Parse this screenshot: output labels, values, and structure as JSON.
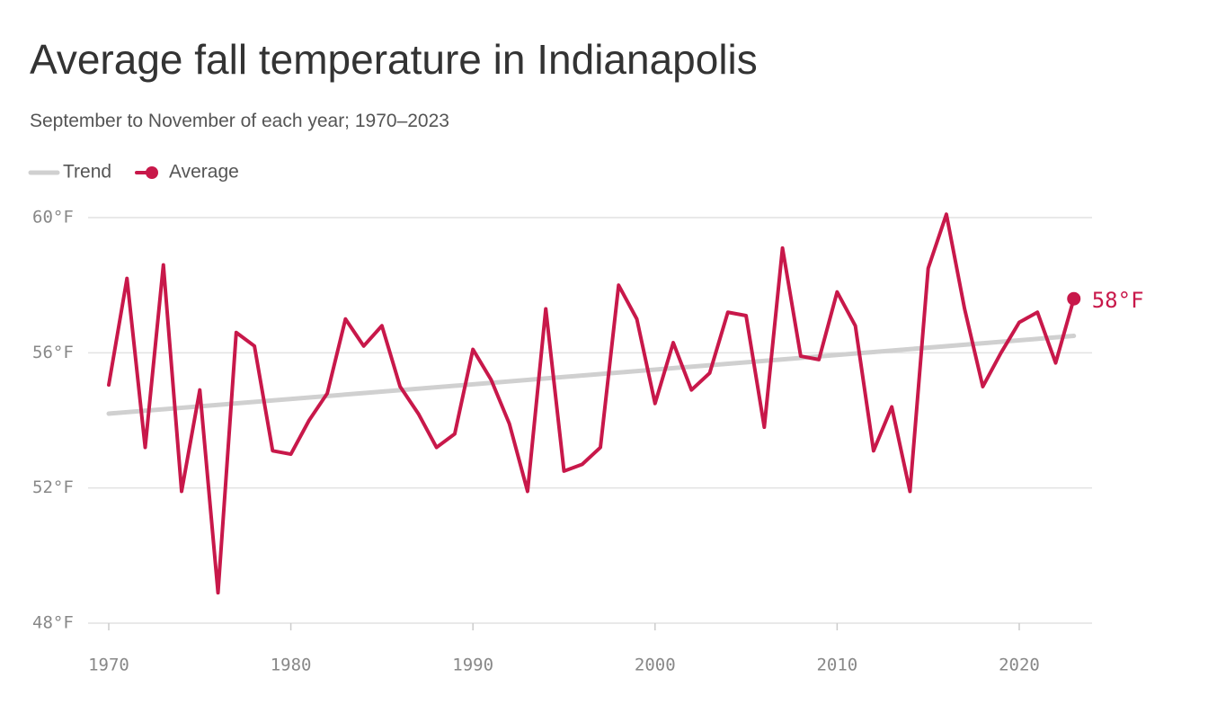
{
  "chart_data": {
    "type": "line",
    "title": "Average fall temperature in Indianapolis",
    "subtitle": "September to November of each year; 1970–2023",
    "series": [
      {
        "name": "Trend",
        "color": "#d0d0d0",
        "x": [
          1970,
          2023
        ],
        "values": [
          54.2,
          56.5
        ]
      },
      {
        "name": "Average",
        "color": "#c8184a",
        "x": [
          1970,
          1971,
          1972,
          1973,
          1974,
          1975,
          1976,
          1977,
          1978,
          1979,
          1980,
          1981,
          1982,
          1983,
          1984,
          1985,
          1986,
          1987,
          1988,
          1989,
          1990,
          1991,
          1992,
          1993,
          1994,
          1995,
          1996,
          1997,
          1998,
          1999,
          2000,
          2001,
          2002,
          2003,
          2004,
          2005,
          2006,
          2007,
          2008,
          2009,
          2010,
          2011,
          2012,
          2013,
          2014,
          2015,
          2016,
          2017,
          2018,
          2019,
          2020,
          2021,
          2022,
          2023
        ],
        "values": [
          55.05,
          58.2,
          53.2,
          58.6,
          51.9,
          54.9,
          48.9,
          56.6,
          56.2,
          53.1,
          53.0,
          54.0,
          54.8,
          57.0,
          56.2,
          56.8,
          55.0,
          54.2,
          53.2,
          53.6,
          56.1,
          55.2,
          53.9,
          51.9,
          57.3,
          52.5,
          52.7,
          53.2,
          58.0,
          57.0,
          54.5,
          56.3,
          54.9,
          55.4,
          57.2,
          57.1,
          53.8,
          59.1,
          55.9,
          55.8,
          57.8,
          56.8,
          53.1,
          54.4,
          51.9,
          58.5,
          60.1,
          57.3,
          55.0,
          56.0,
          56.9,
          57.2,
          55.7,
          57.6
        ],
        "value_labels": [
          null,
          null,
          null,
          null,
          null,
          null,
          null,
          null,
          null,
          null,
          null,
          null,
          null,
          null,
          null,
          null,
          null,
          null,
          null,
          null,
          null,
          null,
          null,
          null,
          null,
          null,
          null,
          null,
          null,
          null,
          null,
          null,
          null,
          null,
          null,
          null,
          null,
          null,
          null,
          null,
          null,
          null,
          null,
          null,
          null,
          null,
          null,
          null,
          null,
          null,
          null,
          null,
          null,
          "58°F"
        ]
      }
    ],
    "xlim": [
      1970,
      2024
    ],
    "xticks": [
      1970,
      1980,
      1990,
      2000,
      2010,
      2020
    ],
    "ylim": [
      48,
      60
    ],
    "yticks": [
      {
        "value": 48,
        "label": "48°F"
      },
      {
        "value": 52,
        "label": "52°F"
      },
      {
        "value": 56,
        "label": "56°F"
      },
      {
        "value": 60,
        "label": "60°F"
      }
    ],
    "grid": true
  }
}
